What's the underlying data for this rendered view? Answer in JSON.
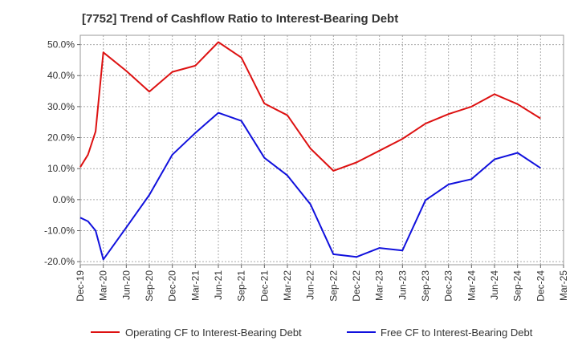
{
  "chart_data": {
    "type": "line",
    "title": "[7752]  Trend of Cashflow Ratio to Interest-Bearing Debt",
    "xlabel": "",
    "ylabel": "",
    "x_ticks": [
      "Dec-19",
      "Mar-20",
      "Jun-20",
      "Sep-20",
      "Dec-20",
      "Mar-21",
      "Jun-21",
      "Sep-21",
      "Dec-21",
      "Mar-22",
      "Jun-22",
      "Sep-22",
      "Dec-22",
      "Mar-23",
      "Jun-23",
      "Sep-23",
      "Dec-23",
      "Mar-24",
      "Jun-24",
      "Sep-24",
      "Dec-24",
      "Mar-25"
    ],
    "y_ticks": [
      "50.0%",
      "40.0%",
      "30.0%",
      "20.0%",
      "10.0%",
      "0.0%",
      "-10.0%",
      "-20.0%"
    ],
    "y_tick_values": [
      50,
      40,
      30,
      20,
      10,
      0,
      -10,
      -20
    ],
    "ylim": [
      -21,
      53
    ],
    "grid": true,
    "legend_position": "bottom",
    "series": [
      {
        "name": "Operating CF to Interest-Bearing Debt",
        "color": "#dd1111",
        "x": [
          "Dec-19",
          "Jan-20",
          "Feb-20",
          "Mar-20",
          "Jun-20",
          "Sep-20",
          "Dec-20",
          "Mar-21",
          "Jun-21",
          "Sep-21",
          "Dec-21",
          "Mar-22",
          "Jun-22",
          "Sep-22",
          "Dec-22",
          "Mar-23",
          "Jun-23",
          "Sep-23",
          "Dec-23",
          "Mar-24",
          "Jun-24",
          "Sep-24",
          "Dec-24"
        ],
        "values": [
          10.5,
          14.5,
          22.0,
          47.5,
          41.5,
          34.8,
          41.2,
          43.2,
          50.8,
          45.8,
          31.0,
          27.2,
          16.5,
          9.3,
          12.0,
          15.8,
          19.6,
          24.5,
          27.6,
          30.0,
          34.0,
          30.8,
          26.2
        ]
      },
      {
        "name": "Free CF to Interest-Bearing Debt",
        "color": "#1111dd",
        "x": [
          "Dec-19",
          "Jan-20",
          "Feb-20",
          "Mar-20",
          "Jun-20",
          "Sep-20",
          "Dec-20",
          "Mar-21",
          "Jun-21",
          "Sep-21",
          "Dec-21",
          "Mar-22",
          "Jun-22",
          "Sep-22",
          "Dec-22",
          "Mar-23",
          "Jun-23",
          "Sep-23",
          "Dec-23",
          "Mar-24",
          "Jun-24",
          "Sep-24",
          "Dec-24"
        ],
        "values": [
          -5.8,
          -7.0,
          -10.0,
          -19.3,
          -9.0,
          1.5,
          14.5,
          21.5,
          28.0,
          25.4,
          13.5,
          7.8,
          -1.5,
          -17.6,
          -18.5,
          -15.6,
          -16.4,
          -0.2,
          4.9,
          6.6,
          13.0,
          15.1,
          10.2
        ]
      }
    ]
  }
}
